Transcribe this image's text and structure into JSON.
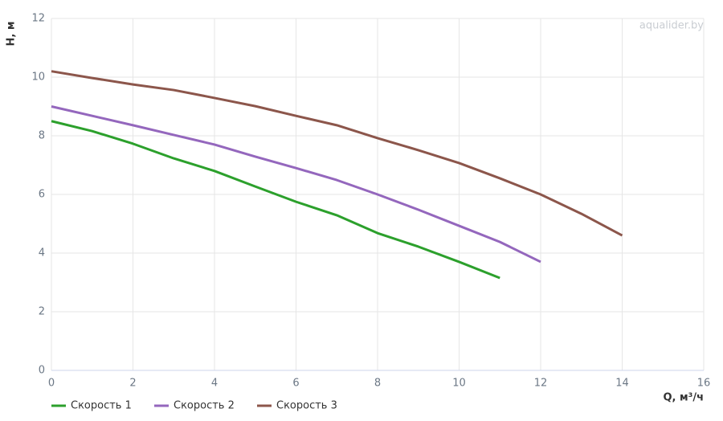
{
  "chart_data": {
    "type": "line",
    "x_label": "Q, м³/ч",
    "y_label": "H, м",
    "watermark": "aqualider.by",
    "xlim": [
      0,
      16
    ],
    "xticks": [
      0,
      2,
      4,
      6,
      8,
      10,
      12,
      14,
      16
    ],
    "ylim": [
      0,
      12
    ],
    "yticks": [
      0,
      2,
      4,
      6,
      8,
      10,
      12
    ],
    "grid": true,
    "series": [
      {
        "name": "Скорость 1",
        "color": "#2ca02c",
        "x": [
          0,
          1,
          2,
          3,
          4,
          5,
          6,
          7,
          8,
          9,
          10,
          11
        ],
        "values": [
          8.5,
          8.16,
          7.73,
          7.23,
          6.8,
          6.27,
          5.75,
          5.29,
          4.68,
          4.22,
          3.7,
          3.15
        ]
      },
      {
        "name": "Скорость 2",
        "color": "#9467bd",
        "x": [
          0,
          1,
          2,
          3,
          4,
          5,
          6,
          7,
          8,
          9,
          10,
          11,
          12
        ],
        "values": [
          9.0,
          8.68,
          8.36,
          8.03,
          7.7,
          7.29,
          6.9,
          6.49,
          6.0,
          5.48,
          4.93,
          4.38,
          3.7
        ]
      },
      {
        "name": "Скорость 3",
        "color": "#8c564b",
        "x": [
          0,
          1,
          2,
          3,
          4,
          5,
          6,
          7,
          8,
          9,
          10,
          11,
          12,
          13,
          14
        ],
        "values": [
          10.2,
          9.97,
          9.75,
          9.56,
          9.29,
          9.01,
          8.68,
          8.36,
          7.92,
          7.51,
          7.07,
          6.55,
          6.0,
          5.34,
          4.6
        ]
      }
    ]
  }
}
